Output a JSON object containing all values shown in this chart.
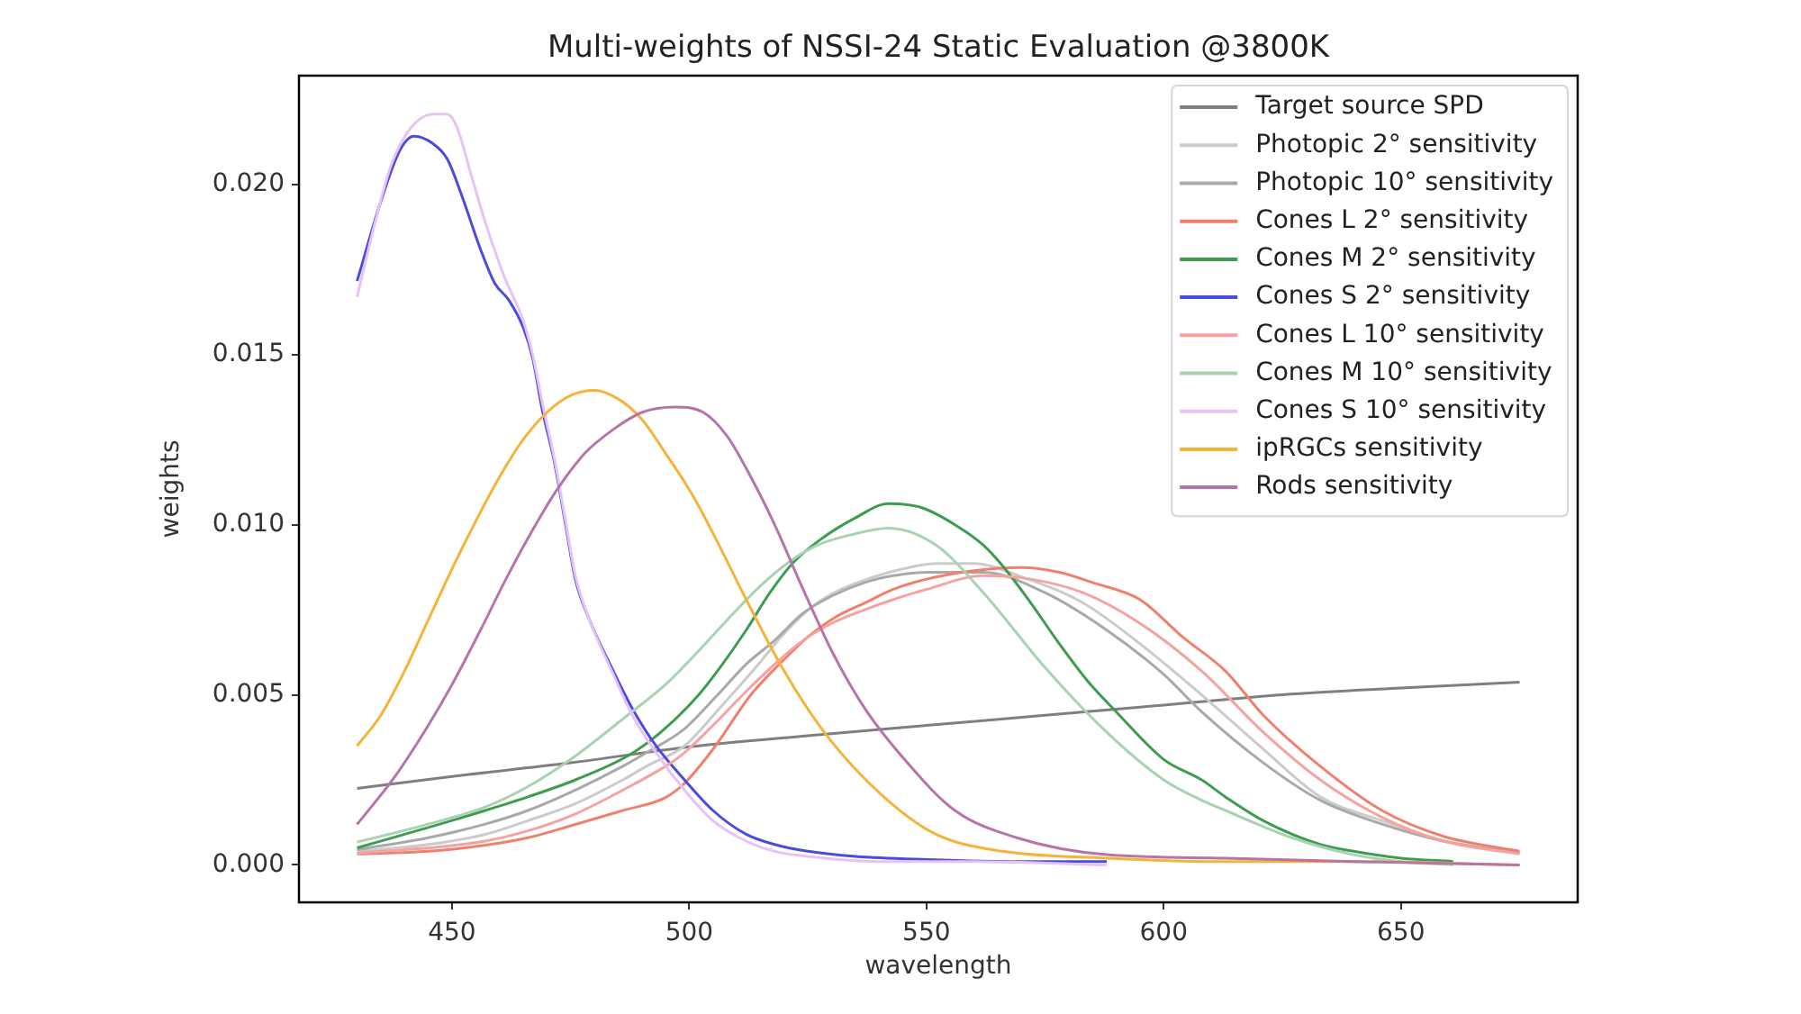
{
  "chart_data": {
    "type": "line",
    "title": "Multi-weights of NSSI-24 Static Evaluation @3800K",
    "xlabel": "wavelength",
    "ylabel": "weights",
    "xlim": [
      417.75,
      687.25
    ],
    "xticks": [
      450,
      500,
      550,
      600,
      650
    ],
    "ylim": [
      -0.0011,
      0.0232
    ],
    "yticks": [
      {
        "value": 0,
        "label": "0.000"
      },
      0.005,
      {
        "value": 0.01,
        "label": "0.010"
      },
      0.015,
      {
        "value": 0.02,
        "label": "0.020"
      }
    ],
    "legend": "top right",
    "line_style": "solid",
    "series": [
      {
        "name": "Target source SPD",
        "color": "#7f7f7f",
        "x": [
          430,
          450,
          475,
          500,
          525,
          550,
          575,
          600,
          625,
          650,
          675
        ],
        "values": [
          0.00225,
          0.0026,
          0.003,
          0.00347,
          0.0038,
          0.0041,
          0.0044,
          0.0047,
          0.005,
          0.0052,
          0.00537
        ]
      },
      {
        "name": "Photopic 2° sensitivity",
        "color": "#cbcbcb",
        "x": [
          430,
          445,
          457,
          466,
          476,
          486,
          491,
          499,
          507,
          514,
          520,
          526,
          532,
          539,
          545,
          552,
          560,
          570,
          583,
          595,
          608,
          621,
          633,
          646,
          659,
          675
        ],
        "values": [
          0.0004,
          0.0006,
          0.0009,
          0.0013,
          0.0018,
          0.0025,
          0.0029,
          0.0035,
          0.0047,
          0.0058,
          0.0068,
          0.0076,
          0.0081,
          0.00847,
          0.0087,
          0.00886,
          0.00886,
          0.00847,
          0.0077,
          0.0065,
          0.005,
          0.0034,
          0.002,
          0.0013,
          0.0007,
          0.00035
        ]
      },
      {
        "name": "Photopic 10° sensitivity",
        "color": "#a9a9a9",
        "x": [
          430,
          445,
          457,
          466,
          476,
          486,
          491,
          499,
          506,
          512,
          518,
          524,
          530,
          537,
          543,
          550,
          562,
          575,
          588,
          600,
          608,
          621,
          633,
          646,
          659,
          675
        ],
        "values": [
          0.00045,
          0.0008,
          0.0012,
          0.0016,
          0.0022,
          0.0029,
          0.0033,
          0.004,
          0.005,
          0.0059,
          0.0066,
          0.0074,
          0.0079,
          0.0083,
          0.0085,
          0.0086,
          0.0086,
          0.008,
          0.0069,
          0.0056,
          0.0045,
          0.003,
          0.0019,
          0.0012,
          0.0007,
          0.00035
        ]
      },
      {
        "name": "Cones L 2° sensitivity",
        "color": "#f0806e",
        "x": [
          430,
          445,
          457,
          466,
          476,
          486,
          495,
          499,
          505,
          513,
          519,
          525,
          531,
          537,
          543,
          550,
          560,
          570,
          578,
          585,
          595,
          604,
          613,
          621,
          633,
          646,
          659,
          675
        ],
        "values": [
          0.00032,
          0.0004,
          0.00058,
          0.0008,
          0.00119,
          0.0016,
          0.00198,
          0.0024,
          0.0034,
          0.005,
          0.0059,
          0.0067,
          0.0073,
          0.0077,
          0.0081,
          0.0084,
          0.00865,
          0.00874,
          0.0086,
          0.0083,
          0.0078,
          0.0067,
          0.0057,
          0.0044,
          0.0029,
          0.0016,
          0.00084,
          0.0004
        ]
      },
      {
        "name": "Cones M 2° sensitivity",
        "color": "#3e9c50",
        "x": [
          430,
          445,
          457,
          466,
          476,
          487,
          494,
          502,
          507,
          512,
          517,
          522,
          528,
          535,
          542,
          549,
          556,
          562,
          566,
          572,
          578,
          584,
          590,
          600,
          608,
          613,
          621,
          633,
          640,
          650,
          661
        ],
        "values": [
          0.0005,
          0.0011,
          0.0016,
          0.002,
          0.0025,
          0.0032,
          0.0039,
          0.005,
          0.0059,
          0.0069,
          0.008,
          0.0089,
          0.0096,
          0.0102,
          0.01062,
          0.0105,
          0.01,
          0.0094,
          0.0088,
          0.0077,
          0.0065,
          0.0054,
          0.0045,
          0.0031,
          0.0025,
          0.002,
          0.0013,
          0.0006,
          0.0004,
          0.0002,
          0.0001
        ]
      },
      {
        "name": "Cones S 2° sensitivity",
        "color": "#4b4bdf",
        "x": [
          430,
          435,
          439,
          442,
          446,
          449,
          452,
          456,
          459,
          462,
          465,
          467,
          469,
          471.5,
          473.7,
          476,
          479,
          484,
          488,
          493,
          499,
          505,
          512,
          518,
          525,
          535,
          550,
          570,
          588
        ],
        "values": [
          0.01716,
          0.0195,
          0.021,
          0.02142,
          0.0212,
          0.02075,
          0.0197,
          0.0181,
          0.0171,
          0.0166,
          0.0158,
          0.0149,
          0.0134,
          0.0119,
          0.0102,
          0.0084,
          0.0072,
          0.0057,
          0.0046,
          0.0035,
          0.0025,
          0.0016,
          0.0009,
          0.0006,
          0.0004,
          0.00025,
          0.00016,
          0.0001,
          0.0001
        ]
      },
      {
        "name": "Cones L 10° sensitivity",
        "color": "#f5a3a0",
        "x": [
          430,
          445,
          457,
          466,
          476,
          486,
          495,
          499,
          505,
          512,
          518,
          524,
          530,
          537,
          543,
          550,
          562,
          572,
          583,
          595,
          608,
          621,
          633,
          646,
          659,
          675
        ],
        "values": [
          0.00035,
          0.0005,
          0.0007,
          0.001,
          0.0015,
          0.0022,
          0.0029,
          0.0033,
          0.0041,
          0.0051,
          0.0059,
          0.0066,
          0.0071,
          0.0075,
          0.0078,
          0.0081,
          0.0085,
          0.0084,
          0.008,
          0.0071,
          0.0057,
          0.0039,
          0.0025,
          0.0014,
          0.0007,
          0.00032
        ]
      },
      {
        "name": "Cones M 10° sensitivity",
        "color": "#a9d2b2",
        "x": [
          430,
          445,
          457,
          466,
          475,
          487,
          495,
          500,
          508,
          515,
          521,
          527,
          534,
          542,
          552,
          562,
          575,
          588,
          600,
          608,
          613,
          627,
          640,
          650,
          661
        ],
        "values": [
          0.00067,
          0.0012,
          0.0017,
          0.0023,
          0.0031,
          0.0044,
          0.0053,
          0.006,
          0.0072,
          0.0082,
          0.0089,
          0.0094,
          0.0097,
          0.0099,
          0.0094,
          0.008,
          0.0058,
          0.0039,
          0.0025,
          0.0019,
          0.0016,
          0.0008,
          0.0003,
          0.0001,
          0
        ]
      },
      {
        "name": "Cones S 10° sensitivity",
        "color": "#e6c2f5",
        "x": [
          430,
          434,
          437,
          440,
          443,
          446,
          449,
          451,
          454,
          457,
          461,
          465,
          467,
          469,
          471.5,
          473.7,
          476,
          479,
          484,
          488,
          493,
          499,
          505,
          512,
          518,
          525,
          540,
          560,
          588
        ],
        "values": [
          0.0167,
          0.019,
          0.0205,
          0.0214,
          0.0219,
          0.02207,
          0.02207,
          0.0217,
          0.0203,
          0.0189,
          0.0173,
          0.016,
          0.015,
          0.0136,
          0.012,
          0.0103,
          0.0085,
          0.0072,
          0.0056,
          0.0044,
          0.0033,
          0.0022,
          0.0013,
          0.0007,
          0.0004,
          0.00025,
          0.0001,
          0.0001,
          0
        ]
      },
      {
        "name": "ipRGCs sensitivity",
        "color": "#f6b33a",
        "x": [
          430,
          435,
          440,
          445,
          450,
          455,
          460,
          465,
          470,
          475,
          480,
          485,
          490,
          495,
          501,
          507,
          512,
          520,
          529,
          541,
          552,
          566,
          588,
          610,
          640,
          675
        ],
        "values": [
          0.0035,
          0.0044,
          0.0057,
          0.0072,
          0.0087,
          0.0101,
          0.0114,
          0.0125,
          0.0133,
          0.0138,
          0.01395,
          0.0137,
          0.0131,
          0.0121,
          0.0108,
          0.0092,
          0.0078,
          0.0057,
          0.0038,
          0.002,
          0.0009,
          0.0004,
          0.0002,
          0.0001,
          0.0001,
          0
        ]
      },
      {
        "name": "Rods sensitivity",
        "color": "#b674a8",
        "x": [
          430,
          438,
          445,
          450,
          456,
          461,
          466,
          472,
          478,
          484,
          490,
          497,
          503,
          508,
          513,
          518,
          524,
          530,
          537,
          546,
          556,
          569,
          588,
          613,
          640,
          675
        ],
        "values": [
          0.00119,
          0.0026,
          0.0041,
          0.0053,
          0.0069,
          0.0083,
          0.0096,
          0.011,
          0.0121,
          0.0128,
          0.0133,
          0.01346,
          0.0133,
          0.0126,
          0.0114,
          0.01,
          0.0081,
          0.0063,
          0.0046,
          0.003,
          0.0016,
          0.0008,
          0.0003,
          0.0002,
          0.0001,
          0
        ]
      }
    ]
  }
}
